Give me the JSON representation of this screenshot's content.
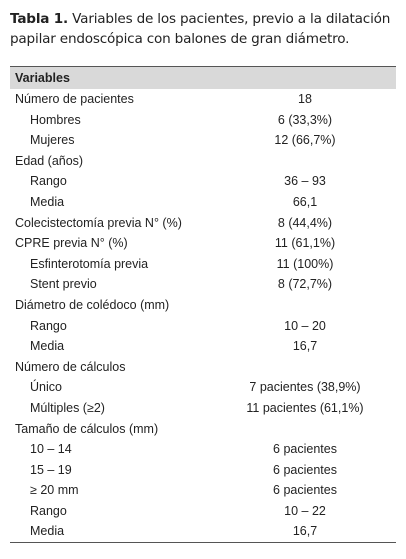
{
  "title": {
    "label": "Tabla 1.",
    "text": "Variables de los pacientes, previo a la dilatación papilar endoscópica con balones de gran diámetro."
  },
  "table": {
    "header": "Variables",
    "sections": [
      {
        "label": "Número de pacientes",
        "value": "18",
        "items": [
          {
            "label": "Hombres",
            "value": "6 (33,3%)"
          },
          {
            "label": "Mujeres",
            "value": "12 (66,7%)"
          }
        ]
      },
      {
        "label": "Edad (años)",
        "items": [
          {
            "label": "Rango",
            "value": "36 – 93"
          },
          {
            "label": "Media",
            "value": "66,1"
          }
        ]
      },
      {
        "label": "Colecistectomía previa N° (%)",
        "value": "8 (44,4%)"
      },
      {
        "label": "CPRE previa N° (%)",
        "value": "11 (61,1%)",
        "items": [
          {
            "label": "Esfinterotomía previa",
            "value": "11 (100%)"
          },
          {
            "label": "Stent previo",
            "value": "8 (72,7%)"
          }
        ]
      },
      {
        "label": "Diámetro de colédoco (mm)",
        "items": [
          {
            "label": "Rango",
            "value": "10 – 20"
          },
          {
            "label": "Media",
            "value": "16,7"
          }
        ]
      },
      {
        "label": "Número de cálculos",
        "items": [
          {
            "label": "Único",
            "value": "7 pacientes (38,9%)"
          },
          {
            "label": "Múltiples (≥2)",
            "value": "11 pacientes (61,1%)"
          }
        ]
      },
      {
        "label": "Tamaño de cálculos (mm)",
        "items": [
          {
            "label": "10 – 14",
            "value": "6 pacientes"
          },
          {
            "label": "15 – 19",
            "value": "6 pacientes"
          },
          {
            "label": "≥ 20 mm",
            "value": "6 pacientes"
          },
          {
            "label": "Rango",
            "value": "10 – 22"
          },
          {
            "label": "Media",
            "value": "16,7"
          }
        ]
      }
    ]
  }
}
